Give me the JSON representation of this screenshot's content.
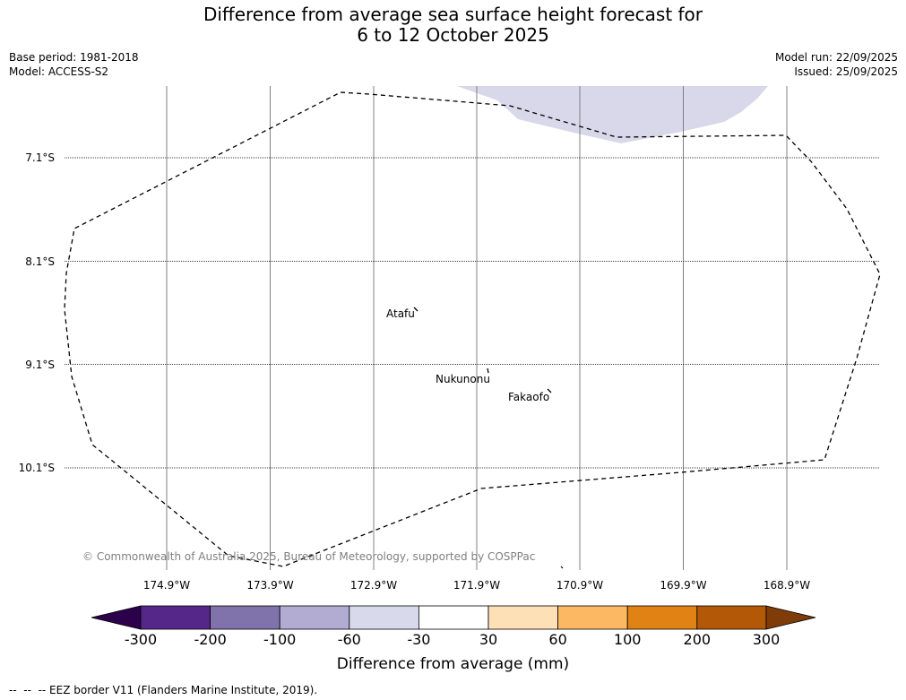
{
  "title": {
    "line1": "Difference from average sea surface height forecast for",
    "line2": "6 to 12 October 2025"
  },
  "meta": {
    "base_period": "Base period: 1981-2018",
    "model": "Model: ACCESS-S2",
    "model_run": "Model run: 22/09/2025",
    "issued": "Issued: 25/09/2025"
  },
  "map": {
    "latitude_labels": [
      "7.1°S",
      "8.1°S",
      "9.1°S",
      "10.1°S"
    ],
    "longitude_labels": [
      "174.9°W",
      "173.9°W",
      "172.9°W",
      "171.9°W",
      "170.9°W",
      "169.9°W",
      "168.9°W"
    ],
    "places": [
      "Atafu",
      "Nukunonu",
      "Fakaofo"
    ],
    "copyright": "© Commonwealth of Australia 2025, Bureau of Meteorology, supported by COSPPac",
    "anomaly_region_class": "-60 to -30",
    "colors": {
      "eez_border": "#000000",
      "gridline": "#808080",
      "anomaly_fill": "#d8d8ea"
    }
  },
  "colorbar": {
    "title": "Difference from average (mm)",
    "ticks": [
      "-300",
      "-200",
      "-100",
      "-60",
      "-30",
      "30",
      "60",
      "100",
      "200",
      "300"
    ],
    "colors": [
      "#2d004b",
      "#542788",
      "#8073ac",
      "#b2abd2",
      "#d8daeb",
      "#ffffff",
      "#fee0b6",
      "#fdb863",
      "#e08214",
      "#b35806",
      "#7f3b08"
    ]
  },
  "legend": {
    "text": "--  --  -- EEZ border V11 (Flanders Marine Institute, 2019)."
  }
}
